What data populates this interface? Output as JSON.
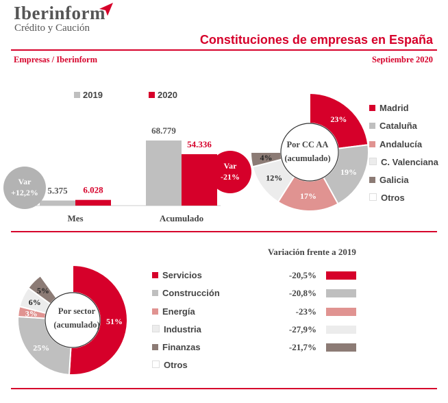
{
  "header": {
    "logo_main": "Iberinform",
    "logo_sub": "Crédito y Caución",
    "title": "Constituciones de empresas en España",
    "subtitle_left": "Empresas / Iberinform",
    "subtitle_right": "Septiembre 2020"
  },
  "colors": {
    "red": "#d6002a",
    "gray": "#bfbfbf",
    "pink": "#e09391",
    "light": "#ececec",
    "brown": "#8c7b75",
    "white": "#ffffff"
  },
  "bar_legend": [
    "2019",
    "2020"
  ],
  "var_mes": {
    "label": "Var",
    "value": "+12,2%"
  },
  "var_acum": {
    "label": "Var",
    "value": "-21%"
  },
  "donut_ccaa": {
    "center": [
      "Por CC AA",
      "(acumulado)"
    ]
  },
  "donut_sector": {
    "center": [
      "Por sector",
      "(acumulado)"
    ]
  },
  "variation_title": "Variación frente a 2019",
  "chart_data": [
    {
      "type": "bar",
      "categories": [
        "Mes",
        "Acumulado"
      ],
      "series": [
        {
          "name": "2019",
          "values": [
            5375,
            68779
          ],
          "labels": [
            "5.375",
            "68.779"
          ]
        },
        {
          "name": "2020",
          "values": [
            6028,
            54336
          ],
          "labels": [
            "6.028",
            "54.336"
          ]
        }
      ]
    },
    {
      "type": "pie",
      "title": "Por CC AA (acumulado)",
      "labels": [
        "Madrid",
        "Cataluña",
        "Andalucía",
        "C. Valenciana",
        "Galicia",
        "Otros"
      ],
      "values": [
        23,
        19,
        17,
        12,
        4,
        25
      ],
      "value_labels": [
        "23%",
        "19%",
        "17%",
        "12%",
        "4%",
        ""
      ],
      "colors": [
        "#d6002a",
        "#bfbfbf",
        "#e09391",
        "#ececec",
        "#8c7b75",
        "#ffffff"
      ]
    },
    {
      "type": "pie",
      "title": "Por sector (acumulado)",
      "labels": [
        "Servicios",
        "Construcción",
        "Energía",
        "Industria",
        "Finanzas",
        "Otros"
      ],
      "values": [
        51,
        25,
        3,
        6,
        5,
        10
      ],
      "value_labels": [
        "51%",
        "25%",
        "3%",
        "6%",
        "5%",
        ""
      ],
      "colors": [
        "#d6002a",
        "#bfbfbf",
        "#e09391",
        "#ececec",
        "#8c7b75",
        "#ffffff"
      ]
    },
    {
      "type": "bar",
      "title": "Variación frente a 2019",
      "categories": [
        "Servicios",
        "Construcción",
        "Energía",
        "Industria",
        "Finanzas"
      ],
      "values": [
        -20.5,
        -20.8,
        -23,
        -27.9,
        -21.7
      ],
      "labels": [
        "-20,5%",
        "-20,8%",
        "-23%",
        "-27,9%",
        "-21,7%"
      ],
      "colors": [
        "#d6002a",
        "#bfbfbf",
        "#e09391",
        "#ececec",
        "#8c7b75"
      ]
    }
  ]
}
